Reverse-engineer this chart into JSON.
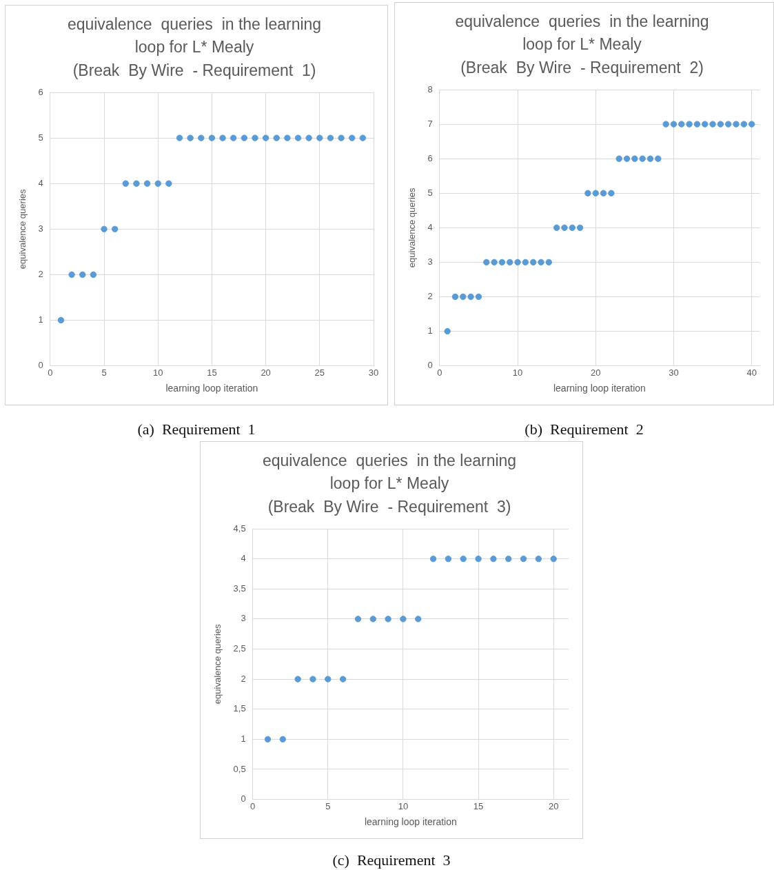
{
  "chart_data": [
    {
      "type": "scatter",
      "title": "equivalence  queries  in the learning\nloop for L* Mealy\n(Break  By Wire  - Requirement  1)",
      "xlabel": "learning loop iteration",
      "ylabel": "equivalence queries",
      "x": [
        1,
        2,
        3,
        4,
        5,
        6,
        7,
        8,
        9,
        10,
        11,
        12,
        13,
        14,
        15,
        16,
        17,
        18,
        19,
        20,
        21,
        22,
        23,
        24,
        25,
        26,
        27,
        28,
        29
      ],
      "values": [
        1,
        2,
        2,
        2,
        3,
        3,
        4,
        4,
        4,
        4,
        4,
        5,
        5,
        5,
        5,
        5,
        5,
        5,
        5,
        5,
        5,
        5,
        5,
        5,
        5,
        5,
        5,
        5,
        5
      ],
      "color": "#5b9bd5",
      "xlim": [
        0,
        30
      ],
      "xticks": [
        0,
        5,
        10,
        15,
        20,
        25,
        30
      ],
      "ylim": [
        0,
        6
      ],
      "yticks": [
        0,
        1,
        2,
        3,
        4,
        5,
        6
      ],
      "grid": true,
      "legend": false,
      "marker": "circle",
      "annotations": [
        "(a)  Requirement  1"
      ]
    },
    {
      "type": "scatter",
      "title": "equivalence  queries  in the learning\nloop for L* Mealy\n(Break  By Wire  - Requirement  2)",
      "xlabel": "learning loop iteration",
      "ylabel": "equivalence queries",
      "x": [
        1,
        2,
        3,
        4,
        5,
        6,
        7,
        8,
        9,
        10,
        11,
        12,
        13,
        14,
        15,
        16,
        17,
        18,
        19,
        20,
        21,
        22,
        23,
        24,
        25,
        26,
        27,
        28,
        29,
        30,
        31,
        32,
        33,
        34,
        35,
        36,
        37,
        38,
        39,
        40
      ],
      "values": [
        1,
        2,
        2,
        2,
        2,
        3,
        3,
        3,
        3,
        3,
        3,
        3,
        3,
        3,
        4,
        4,
        4,
        4,
        5,
        5,
        5,
        5,
        6,
        6,
        6,
        6,
        6,
        6,
        7,
        7,
        7,
        7,
        7,
        7,
        7,
        7,
        7,
        7,
        7,
        7
      ],
      "color": "#5b9bd5",
      "xlim": [
        0,
        41
      ],
      "xticks": [
        0,
        10,
        20,
        30,
        40
      ],
      "ylim": [
        0,
        8
      ],
      "yticks": [
        0,
        1,
        2,
        3,
        4,
        5,
        6,
        7,
        8
      ],
      "grid": true,
      "legend": false,
      "marker": "circle",
      "annotations": [
        "(b)  Requirement  2"
      ]
    },
    {
      "type": "scatter",
      "title": "equivalence  queries  in the learning\nloop for L* Mealy\n(Break  By Wire  - Requirement  3)",
      "xlabel": "learning loop iteration",
      "ylabel": "equivalence queries",
      "x": [
        1,
        2,
        3,
        4,
        5,
        6,
        7,
        8,
        9,
        10,
        11,
        12,
        13,
        14,
        15,
        16,
        17,
        18,
        19,
        20
      ],
      "values": [
        1,
        1,
        2,
        2,
        2,
        2,
        3,
        3,
        3,
        3,
        3,
        4,
        4,
        4,
        4,
        4,
        4,
        4,
        4,
        4
      ],
      "color": "#5b9bd5",
      "xlim": [
        0,
        21
      ],
      "xticks": [
        0,
        5,
        10,
        15,
        20
      ],
      "ylim": [
        0,
        4.5
      ],
      "yticks": [
        0,
        {
          "value": 0.5,
          "label": "0,5"
        },
        1,
        {
          "value": 1.5,
          "label": "1,5"
        },
        2,
        {
          "value": 2.5,
          "label": "2,5"
        },
        3,
        {
          "value": 3.5,
          "label": "3,5"
        },
        4,
        {
          "value": 4.5,
          "label": "4,5"
        }
      ],
      "grid": true,
      "legend": false,
      "marker": "circle",
      "annotations": [
        "(c)  Requirement  3"
      ]
    }
  ]
}
